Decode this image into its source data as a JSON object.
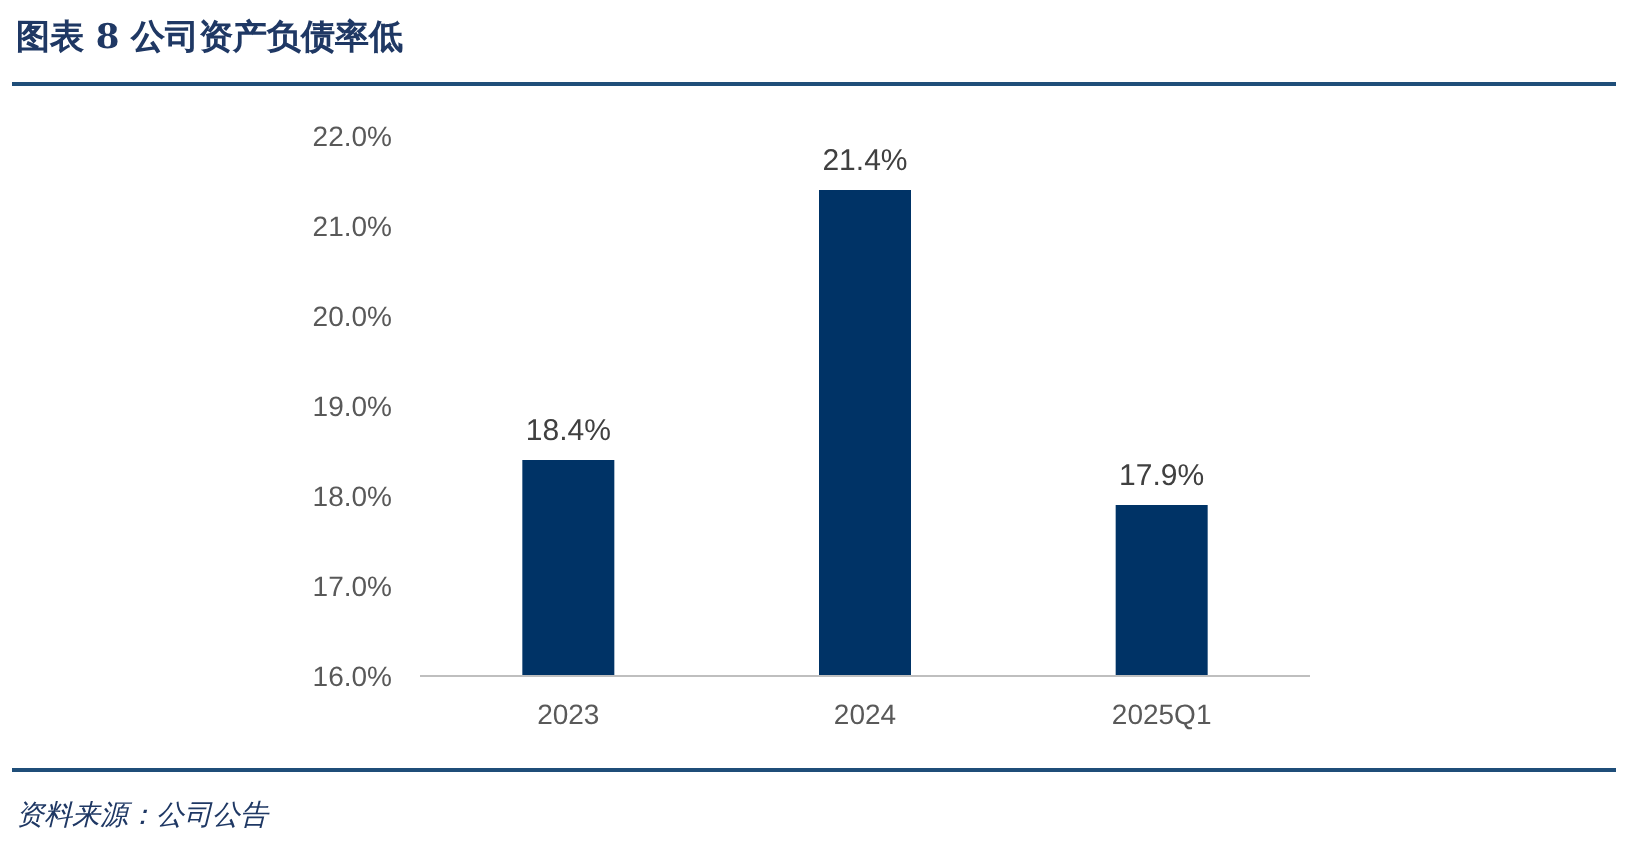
{
  "chart_data": {
    "type": "bar",
    "title": "图表 8   公司资产负债率低",
    "annotations": [
      "资料来源：公司公告"
    ],
    "categories": [
      "2023",
      "2024",
      "2025Q1"
    ],
    "values": [
      18.4,
      21.4,
      17.9
    ],
    "value_labels": [
      "18.4%",
      "21.4%",
      "17.9%"
    ],
    "color": "#003366",
    "ylim": [
      16,
      22
    ],
    "yticks": [
      {
        "value": 16,
        "label": "16.0%"
      },
      {
        "value": 17,
        "label": "17.0%"
      },
      {
        "value": 18,
        "label": "18.0%"
      },
      {
        "value": 19,
        "label": "19.0%"
      },
      {
        "value": 20,
        "label": "20.0%"
      },
      {
        "value": 21,
        "label": "21.0%"
      },
      {
        "value": 22,
        "label": "22.0%"
      }
    ]
  }
}
